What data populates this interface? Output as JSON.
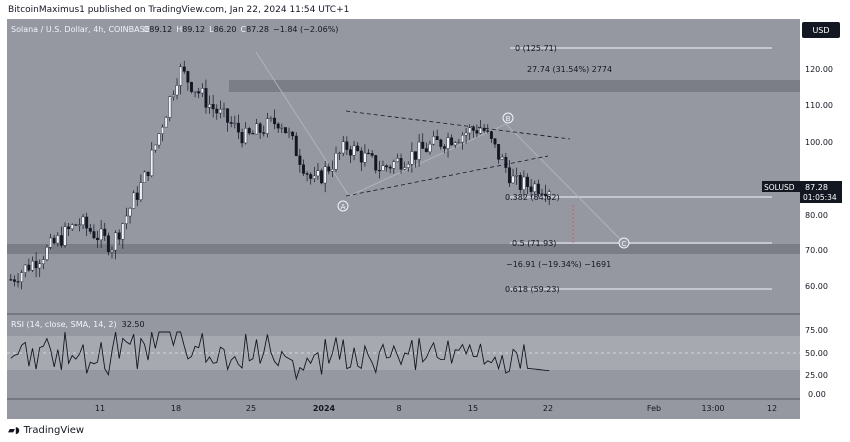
{
  "publisher_line": "BitcoinMaximus1 published on TradingView.com, Jan 22, 2024 11:54 UTC+1",
  "footer_brand": "TradingView",
  "header": {
    "symbol": "Solana / U.S. Dollar, 4h, COINBASE",
    "o_label": "O",
    "o_value": "89.12",
    "h_label": "H",
    "h_value": "89.12",
    "l_label": "L",
    "l_value": "86.20",
    "c_label": "C",
    "c_value": "87.28",
    "change": "−1.84 (−2.06%)"
  },
  "currency_button": "USD",
  "price_axis": [
    "120.00",
    "110.00",
    "100.00",
    "90.00",
    "80.00",
    "70.00",
    "60.00"
  ],
  "price_tag": {
    "symbol": "SOLUSD",
    "price": "87.28",
    "countdown": "01:05:34"
  },
  "fib_labels": {
    "f0": "0 (125.71)",
    "f382": "0.382 (84.62)",
    "f5": "0.5 (71.93)",
    "f618": "0.618 (59.23)"
  },
  "measure_up": "27.74 (31.54%) 2774",
  "measure_down": "−16.91 (−19.34%) −1691",
  "wave_labels": [
    "A",
    "B",
    "C"
  ],
  "rsi": {
    "label": "RSI (14, close, SMA, 14, 2)",
    "value": "32.50",
    "axis": [
      "75.00",
      "50.00",
      "25.00",
      "0.00"
    ]
  },
  "time_axis": [
    "11",
    "18",
    "25",
    "2024",
    "8",
    "15",
    "22",
    "Feb",
    "13:00",
    "12"
  ],
  "colors": {
    "panel_bg": "#9598a1",
    "zone": "#7b7e86",
    "candle": "#131722",
    "fib_line": "#f0f3fa",
    "accent": "#2962ff"
  },
  "chart_data": {
    "type": "candlestick",
    "symbol": "SOLUSD",
    "interval": "4h",
    "x": [
      "11",
      "18",
      "25",
      "2024",
      "8",
      "15",
      "22"
    ],
    "approx_close_path": [
      63,
      70,
      78,
      72,
      90,
      118,
      108,
      100,
      105,
      88,
      98,
      92,
      96,
      100,
      103,
      88,
      87.28
    ],
    "fib_levels": [
      {
        "ratio": 0,
        "price": 125.71
      },
      {
        "ratio": 0.382,
        "price": 84.62
      },
      {
        "ratio": 0.5,
        "price": 71.93
      },
      {
        "ratio": 0.618,
        "price": 59.23
      }
    ],
    "resistance_zone": [
      114,
      117
    ],
    "support_zone": [
      69,
      72
    ],
    "ylim": [
      55,
      130
    ],
    "rsi_value": 32.5,
    "rsi_ylim": [
      0,
      100
    ]
  }
}
